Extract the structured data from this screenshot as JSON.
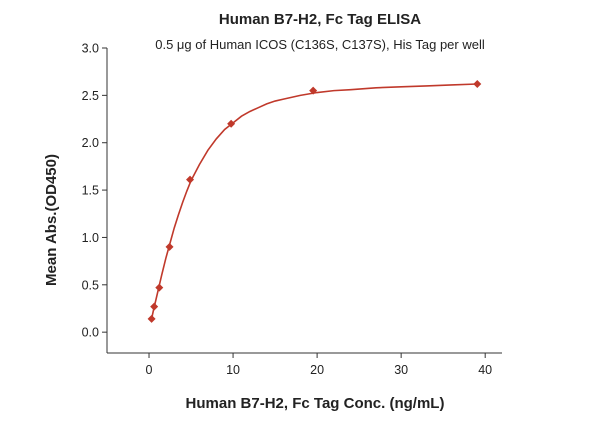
{
  "chart_data": {
    "type": "scatter",
    "title": "Human B7-H2, Fc Tag ELISA",
    "subtitle": "0.5 μg of Human ICOS (C136S, C137S), His Tag per well",
    "xlabel": "Human B7-H2, Fc Tag Conc. (ng/mL)",
    "ylabel": "Mean Abs.(OD450)",
    "xlim": [
      -5,
      42
    ],
    "ylim": [
      -0.22,
      3.0
    ],
    "xticks": [
      0,
      10,
      20,
      30,
      40
    ],
    "yticks": [
      0.0,
      0.5,
      1.0,
      1.5,
      2.0,
      2.5,
      3.0
    ],
    "xtick_labels": [
      "0",
      "10",
      "20",
      "30",
      "40"
    ],
    "ytick_labels": [
      "0.0",
      "0.5",
      "1.0",
      "1.5",
      "2.0",
      "2.5",
      "3.0"
    ],
    "grid": false,
    "series": [
      {
        "marker": "diamond",
        "color": "#c0392b",
        "x": [
          0.305,
          0.61,
          1.22,
          2.44,
          4.88,
          9.77,
          19.53,
          39.06
        ],
        "y": [
          0.14,
          0.27,
          0.47,
          0.9,
          1.61,
          2.2,
          2.55,
          2.62
        ]
      }
    ],
    "fit_curve": {
      "color": "#c0392b",
      "x": [
        0.305,
        0.5,
        1,
        1.5,
        2,
        2.5,
        3,
        3.5,
        4,
        4.5,
        5,
        6,
        7,
        8,
        9,
        10,
        11,
        12,
        13,
        14,
        15,
        16,
        18,
        20,
        22,
        24,
        27,
        30,
        33,
        36,
        39.06
      ],
      "y": [
        0.14,
        0.22,
        0.41,
        0.6,
        0.78,
        0.94,
        1.1,
        1.24,
        1.37,
        1.49,
        1.6,
        1.77,
        1.92,
        2.04,
        2.14,
        2.21,
        2.28,
        2.33,
        2.37,
        2.41,
        2.44,
        2.46,
        2.5,
        2.53,
        2.55,
        2.56,
        2.58,
        2.59,
        2.6,
        2.61,
        2.62
      ]
    }
  }
}
